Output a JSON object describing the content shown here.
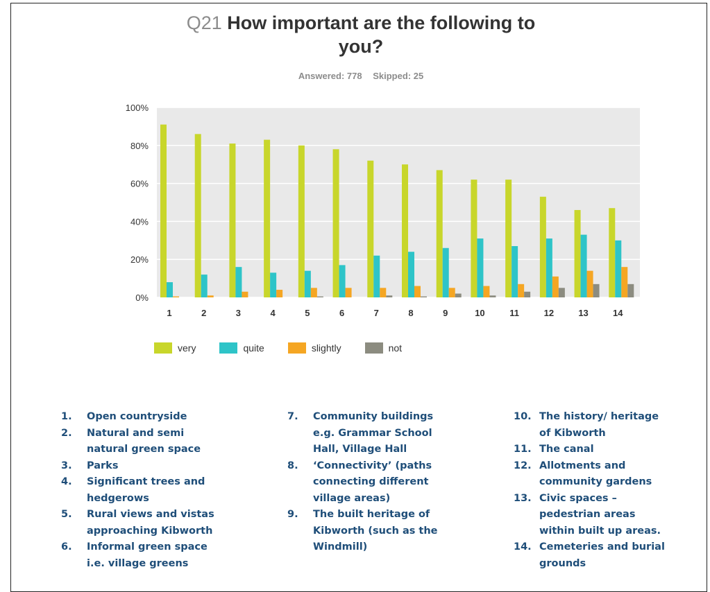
{
  "header": {
    "question_number": "Q21",
    "title_line1": "How important are the following to",
    "title_line2": "you?",
    "answered": "Answered: 778",
    "skipped": "Skipped: 25"
  },
  "chart_data": {
    "type": "bar",
    "categories": [
      "1",
      "2",
      "3",
      "4",
      "5",
      "6",
      "7",
      "8",
      "9",
      "10",
      "11",
      "12",
      "13",
      "14"
    ],
    "yticks": [
      "0%",
      "20%",
      "40%",
      "60%",
      "80%",
      "100%"
    ],
    "ylim": [
      0,
      100
    ],
    "legend_position": "bottom-left",
    "grid": true,
    "series": [
      {
        "name": "very",
        "color": "#c8d62b",
        "values": [
          91,
          86,
          81,
          83,
          80,
          78,
          72,
          70,
          67,
          62,
          62,
          53,
          46,
          47
        ]
      },
      {
        "name": "quite",
        "color": "#2ec4c8",
        "values": [
          8,
          12,
          16,
          13,
          14,
          17,
          22,
          24,
          26,
          31,
          27,
          31,
          33,
          30
        ]
      },
      {
        "name": "slightly",
        "color": "#f5a623",
        "values": [
          0.5,
          1,
          3,
          4,
          5,
          5,
          5,
          6,
          5,
          6,
          7,
          11,
          14,
          16
        ]
      },
      {
        "name": "not",
        "color": "#8c8c80",
        "values": [
          0,
          0,
          0,
          0,
          0.5,
          0,
          1,
          0.5,
          2,
          1,
          3,
          5,
          7,
          7
        ]
      }
    ]
  },
  "items": {
    "col1": [
      {
        "num": "1.",
        "text": "Open countryside"
      },
      {
        "num": "2.",
        "text": "Natural and semi natural green space"
      },
      {
        "num": "3.",
        "text": "Parks"
      },
      {
        "num": "4.",
        "text": "Significant trees and hedgerows"
      },
      {
        "num": "5.",
        "text": "Rural views and vistas approaching Kibworth"
      },
      {
        "num": "6.",
        "text": "Informal green space i.e. village greens"
      }
    ],
    "col2": [
      {
        "num": "7.",
        "text": "Community buildings e.g. Grammar School Hall, Village Hall"
      },
      {
        "num": "8.",
        "text": "‘Connectivity’ (paths connecting different village areas)"
      },
      {
        "num": "9.",
        "text": "The built heritage of Kibworth (such as the Windmill)"
      }
    ],
    "col3": [
      {
        "num": "10.",
        "text": "The history/ heritage of Kibworth"
      },
      {
        "num": "11.",
        "text": "The canal"
      },
      {
        "num": "12.",
        "text": "Allotments and community gardens"
      },
      {
        "num": "13.",
        "text": "Civic spaces – pedestrian areas within built up areas."
      },
      {
        "num": "14.",
        "text": "Cemeteries and burial grounds"
      }
    ]
  }
}
